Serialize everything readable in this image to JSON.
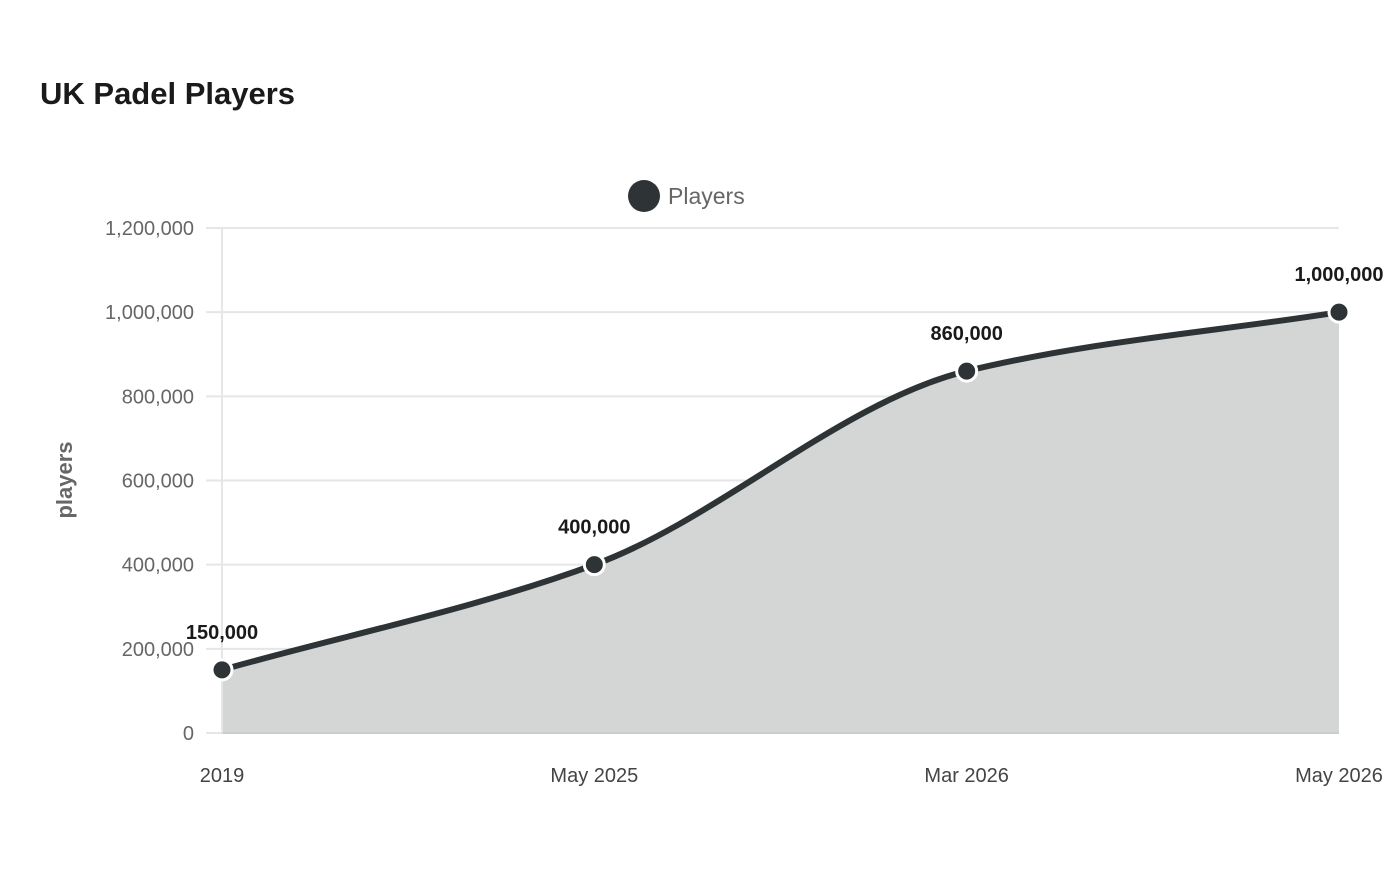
{
  "chart_data": {
    "type": "area",
    "title": "UK Padel Players",
    "categories": [
      "2019",
      "May 2025",
      "Mar 2026",
      "May 2026"
    ],
    "series": [
      {
        "name": "Players",
        "values": [
          150000,
          400000,
          860000,
          1000000
        ],
        "data_labels": [
          "150,000",
          "400,000",
          "860,000",
          "1,000,000"
        ]
      }
    ],
    "xlabel": "",
    "ylabel": "players",
    "ylim": [
      0,
      1200000
    ],
    "yticks": [
      0,
      200000,
      400000,
      600000,
      800000,
      1000000,
      1200000
    ],
    "ytick_labels": [
      "0",
      "200,000",
      "400,000",
      "600,000",
      "800,000",
      "1,000,000",
      "1,200,000"
    ],
    "grid": true,
    "legend_position": "top",
    "colors": {
      "line": "#2e3436",
      "fill": "#d4d6d5",
      "grid": "#e6e6e6"
    }
  }
}
